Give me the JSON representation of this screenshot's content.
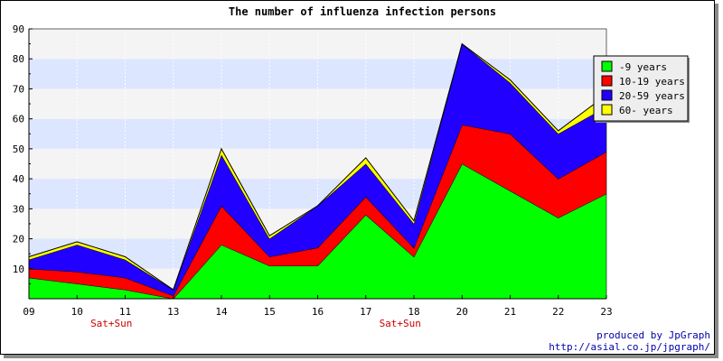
{
  "chart_data": {
    "type": "area",
    "stacked": true,
    "title": "The number of influenza infection persons",
    "categories": [
      "09",
      "10",
      "11",
      "13",
      "14",
      "15",
      "16",
      "17",
      "18",
      "20",
      "21",
      "22",
      "23"
    ],
    "weekend_labels": [
      {
        "category": "10",
        "text": "Sat+Sun"
      },
      {
        "category": "17",
        "text": "Sat+Sun"
      }
    ],
    "series": [
      {
        "name": "-9 years",
        "color": "#00ff00",
        "values": [
          7,
          5,
          3,
          0,
          18,
          11,
          11,
          28,
          14,
          45,
          36,
          27,
          35
        ]
      },
      {
        "name": "10-19 years",
        "color": "#ff0000",
        "values": [
          3,
          4,
          4,
          1,
          13,
          3,
          6,
          6,
          3,
          13,
          19,
          13,
          14
        ]
      },
      {
        "name": "20-59 years",
        "color": "#2200ff",
        "values": [
          3,
          9,
          6,
          2,
          17,
          6,
          14,
          11,
          8,
          27,
          17,
          15,
          15
        ]
      },
      {
        "name": "60- years",
        "color": "#ffff00",
        "values": [
          1,
          1,
          1,
          0,
          2,
          1,
          0,
          2,
          1,
          0,
          1,
          1,
          4
        ]
      }
    ],
    "ylim": [
      0,
      90
    ],
    "yticks": [
      10,
      20,
      30,
      40,
      50,
      60,
      70,
      80,
      90
    ],
    "legend_position": "top-right",
    "band_colors": [
      "#f4f4f4",
      "#dde6ff"
    ]
  },
  "footer": {
    "line1": "produced by JpGraph",
    "line2": "http://asial.co.jp/jpgraph/"
  }
}
